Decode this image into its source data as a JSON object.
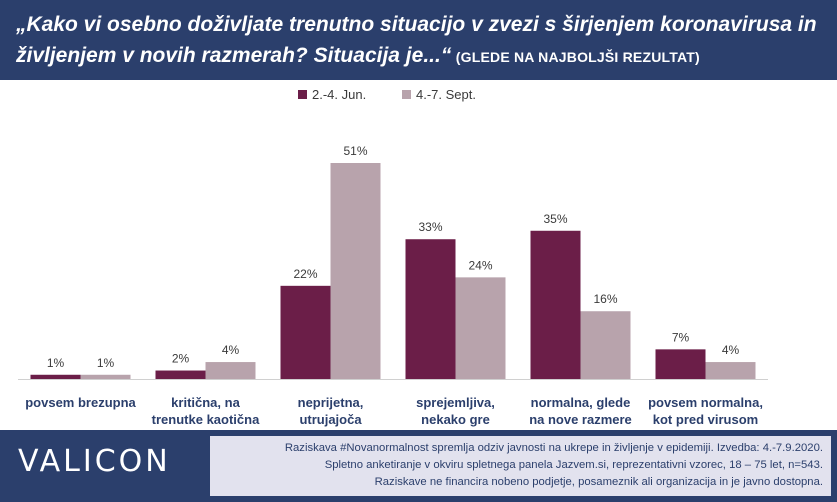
{
  "header": {
    "title": "„Kako vi osebno doživljate trenutno situacijo v zvezi s širjenjem koronavirusa in življenjem v novih razmerah? Situacija je...“",
    "subtitle": "(GLEDE NA NAJBOLJŠI REZULTAT)"
  },
  "chart_data": {
    "type": "bar",
    "categories": [
      [
        "povsem brezupna"
      ],
      [
        "kritična, na",
        "trenutke kaotična"
      ],
      [
        "neprijetna,",
        "utrujajoča"
      ],
      [
        "sprejemljiva,",
        "nekako gre"
      ],
      [
        "normalna, glede",
        "na nove razmere"
      ],
      [
        "povsem normalna,",
        "kot pred virusom"
      ]
    ],
    "series": [
      {
        "name": "2.-4. Jun.",
        "color": "#6b1e48",
        "values": [
          1,
          2,
          22,
          33,
          35,
          7
        ],
        "labels": [
          "1%",
          "2%",
          "22%",
          "33%",
          "35%",
          "7%"
        ]
      },
      {
        "name": "4.-7. Sept.",
        "color": "#b8a3ac",
        "values": [
          1,
          4,
          51,
          24,
          16,
          4
        ],
        "labels": [
          "1%",
          "4%",
          "51%",
          "24%",
          "16%",
          "4%"
        ]
      }
    ],
    "ylim": [
      0,
      51
    ],
    "legend_position": "top-center",
    "grid": false
  },
  "footer": {
    "logo": "VALICON",
    "notes": [
      "Raziskava #Novanormalnost spremlja odziv javnosti na ukrepe in življenje v epidemiji. Izvedba: 4.-7.9.2020.",
      "Spletno anketiranje v okviru spletnega panela Jazvem.si, reprezentativni vzorec, 18 – 75 let, n=543.",
      "Raziskave ne financira nobeno podjetje, posameznik ali organizacija in je javno dostopna."
    ]
  }
}
